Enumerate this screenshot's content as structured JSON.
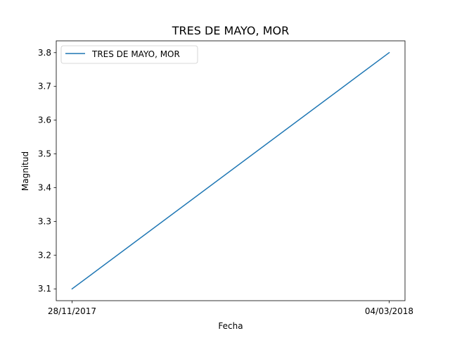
{
  "chart_data": {
    "type": "line",
    "title": "TRES DE MAYO, MOR",
    "xlabel": "Fecha",
    "ylabel": "Magnitud",
    "x": [
      "28/11/2017",
      "04/03/2018"
    ],
    "series": [
      {
        "name": "TRES DE MAYO, MOR",
        "values": [
          3.1,
          3.8
        ],
        "color": "#1f77b4"
      }
    ],
    "yticks": [
      "3.1",
      "3.2",
      "3.3",
      "3.4",
      "3.5",
      "3.6",
      "3.7",
      "3.8"
    ],
    "ylim": [
      3.065,
      3.835
    ],
    "grid": false,
    "legend": "top-left"
  }
}
